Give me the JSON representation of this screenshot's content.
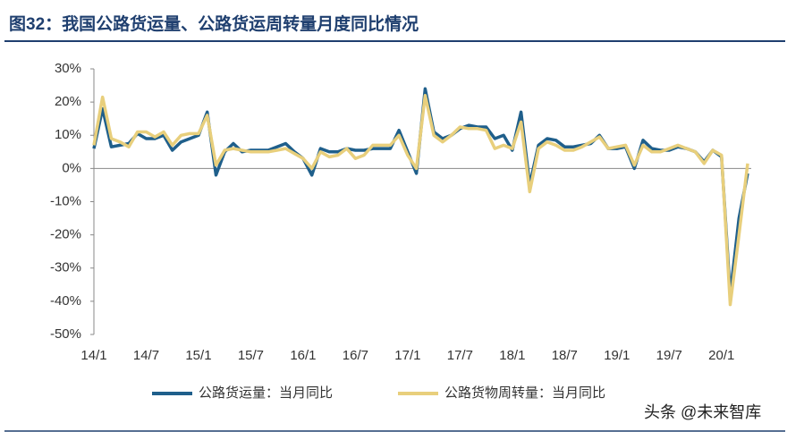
{
  "chart_data": {
    "type": "line",
    "title": "图32：我国公路货运量、公路货运周转量月度同比情况",
    "watermark": "头条 @未来智库",
    "categories": [
      "14/1",
      null,
      null,
      null,
      null,
      null,
      "14/7",
      null,
      null,
      null,
      null,
      null,
      "15/1",
      null,
      null,
      null,
      null,
      null,
      "15/7",
      null,
      null,
      null,
      null,
      null,
      "16/1",
      null,
      null,
      null,
      null,
      null,
      "16/7",
      null,
      null,
      null,
      null,
      null,
      "17/1",
      null,
      null,
      null,
      null,
      null,
      "17/7",
      null,
      null,
      null,
      null,
      null,
      "18/1",
      null,
      null,
      null,
      null,
      null,
      "18/7",
      null,
      null,
      null,
      null,
      null,
      "19/1",
      null,
      null,
      null,
      null,
      null,
      "19/7",
      null,
      null,
      null,
      null,
      null,
      "20/1",
      null,
      null,
      null
    ],
    "series": [
      {
        "name": "公路货运量：当月同比",
        "color": "#1f5f8b",
        "values": [
          6,
          18,
          6.5,
          7,
          7.5,
          10.5,
          9,
          9,
          10,
          5.5,
          8,
          9,
          10,
          17,
          -2,
          5,
          7.5,
          5,
          5.5,
          5.5,
          5.5,
          6.5,
          7.5,
          5,
          3,
          -2,
          6,
          5,
          5,
          6,
          5.5,
          5.5,
          6,
          6,
          6,
          11.5,
          5,
          -1.5,
          24,
          11,
          9,
          10,
          12,
          13,
          12.5,
          12.5,
          9,
          10,
          5.5,
          17,
          -5,
          7,
          9,
          8.5,
          6.5,
          6.5,
          7,
          7.5,
          10,
          6,
          6,
          6.5,
          0,
          8.5,
          6,
          5.5,
          5.5,
          6.5,
          6,
          5,
          2,
          5.5,
          3.5,
          -38,
          -15,
          -1.5
        ]
      },
      {
        "name": "公路货物周转量：当月同比",
        "color": "#e8cf7c",
        "values": [
          7,
          21.5,
          9,
          8,
          6.5,
          11,
          11,
          9.5,
          11,
          7,
          10,
          10.5,
          10.5,
          16,
          1,
          5.5,
          6,
          5.5,
          5,
          5,
          5,
          5.5,
          6,
          4.5,
          3,
          0,
          5,
          3.5,
          4,
          6,
          3,
          4,
          7,
          7,
          7,
          10,
          4,
          0,
          22,
          10,
          8,
          10,
          12.5,
          12,
          12,
          11.5,
          6,
          7,
          6,
          14,
          -7,
          6,
          8,
          7,
          5.5,
          5.5,
          6.5,
          8,
          9.5,
          6,
          6.5,
          7,
          1,
          7,
          5,
          5,
          6,
          7,
          6,
          5,
          1.5,
          5.5,
          4,
          -41,
          -20,
          1.5
        ]
      }
    ],
    "ylim": [
      -50,
      30
    ],
    "yticks": [
      {
        "value": 30,
        "label": "30%"
      },
      {
        "value": 20,
        "label": "20%"
      },
      {
        "value": 10,
        "label": "10%"
      },
      {
        "value": 0,
        "label": "0%"
      },
      {
        "value": -10,
        "label": "-10%"
      },
      {
        "value": -20,
        "label": "-20%"
      },
      {
        "value": -30,
        "label": "-30%"
      },
      {
        "value": -40,
        "label": "-40%"
      },
      {
        "value": -50,
        "label": "-50%"
      }
    ],
    "legend": "bottom"
  }
}
